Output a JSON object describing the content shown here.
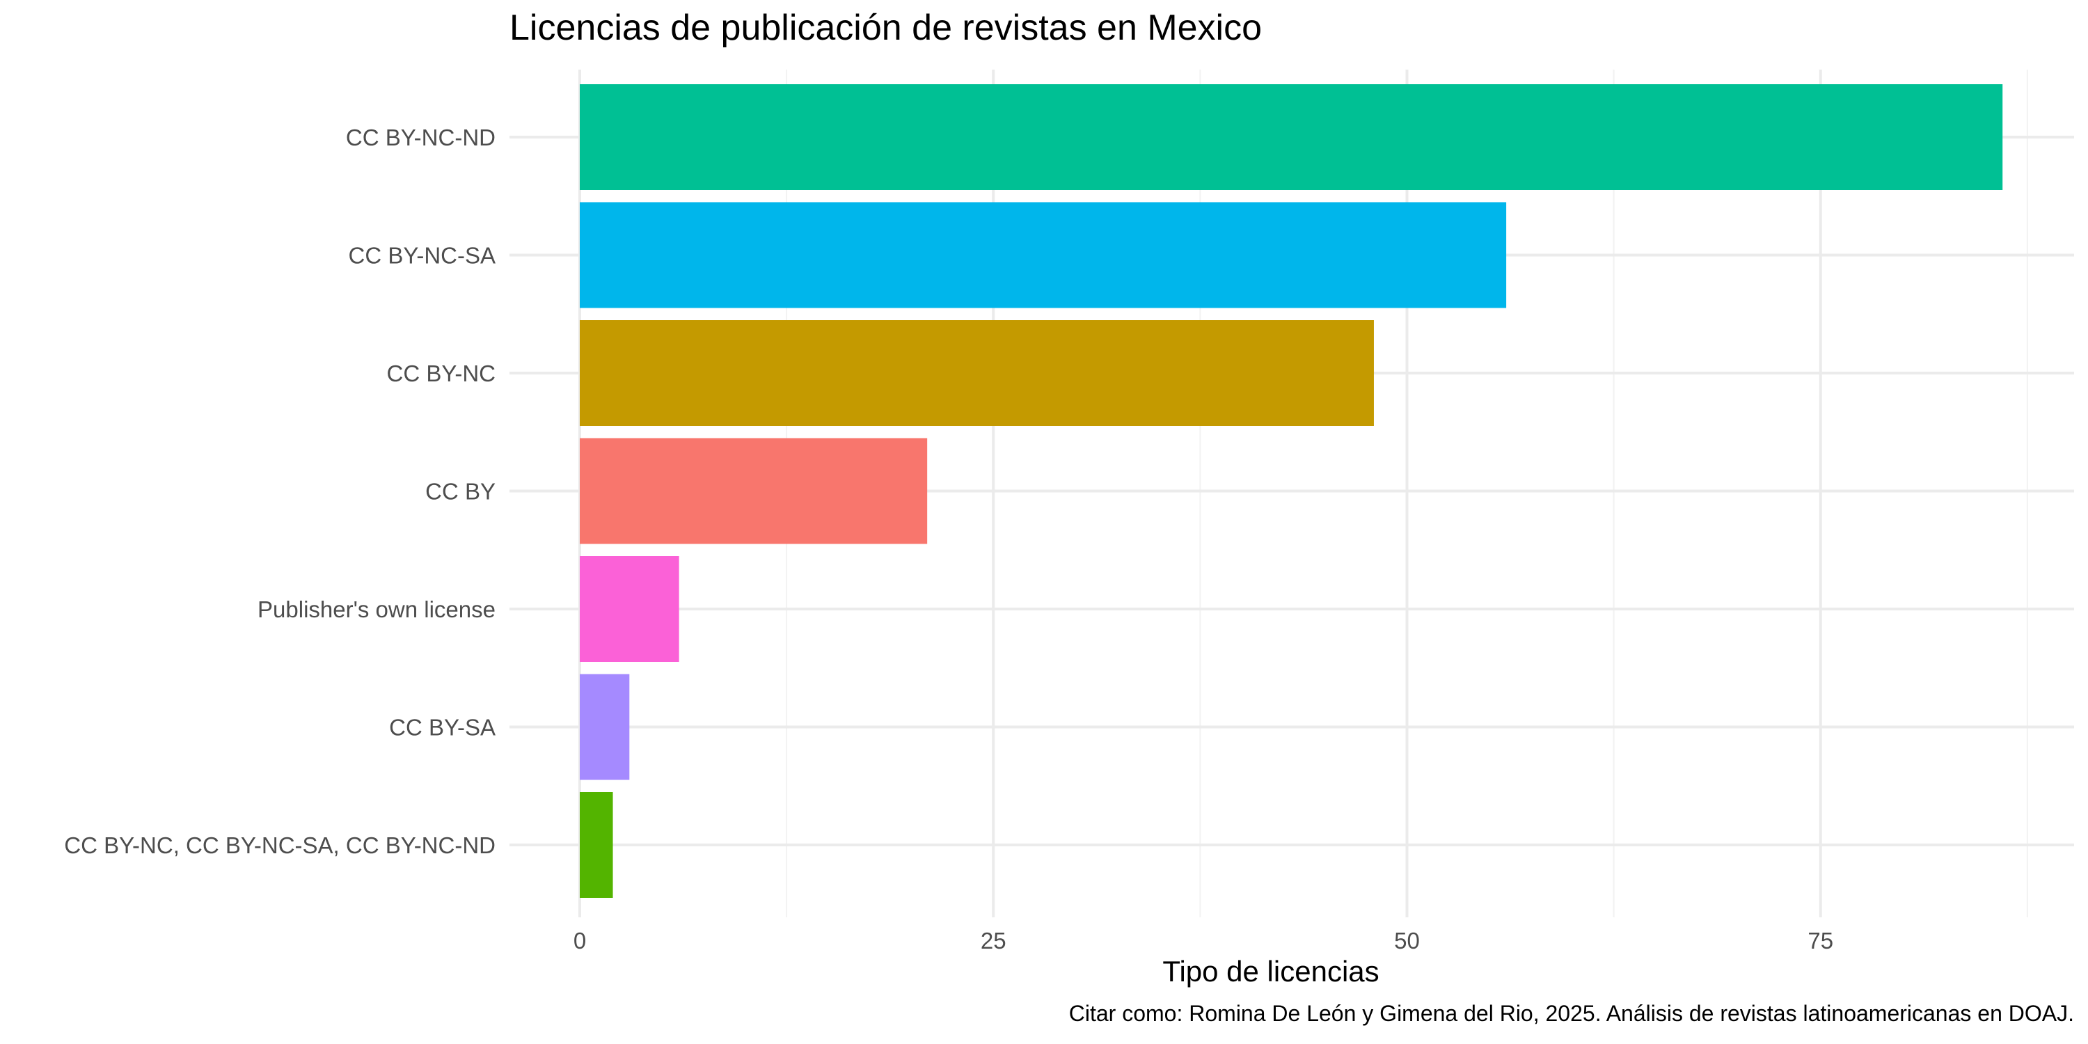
{
  "chart_data": {
    "type": "bar",
    "orientation": "horizontal",
    "title": "Licencias de publicación de revistas en Mexico",
    "xlabel": "Tipo de licencias",
    "ylabel": "",
    "caption": "Citar como: Romina De León y Gimena del Rio, 2025. Análisis de revistas latinoamericanas en DOAJ.",
    "categories": [
      "CC BY-NC-ND",
      "CC BY-NC-SA",
      "CC BY-NC",
      "CC BY",
      "Publisher's own license",
      "CC BY-SA",
      "CC BY-NC, CC BY-NC-SA, CC BY-NC-ND"
    ],
    "values": [
      86,
      56,
      48,
      21,
      6,
      3,
      2
    ],
    "colors": [
      "#00C094",
      "#00B6EB",
      "#C49A00",
      "#F8766D",
      "#FB61D7",
      "#A58AFF",
      "#53B400"
    ],
    "x_ticks": [
      0,
      25,
      50,
      75
    ],
    "xlim": [
      -4.3,
      90.3
    ],
    "grid": true,
    "legend": "none"
  }
}
